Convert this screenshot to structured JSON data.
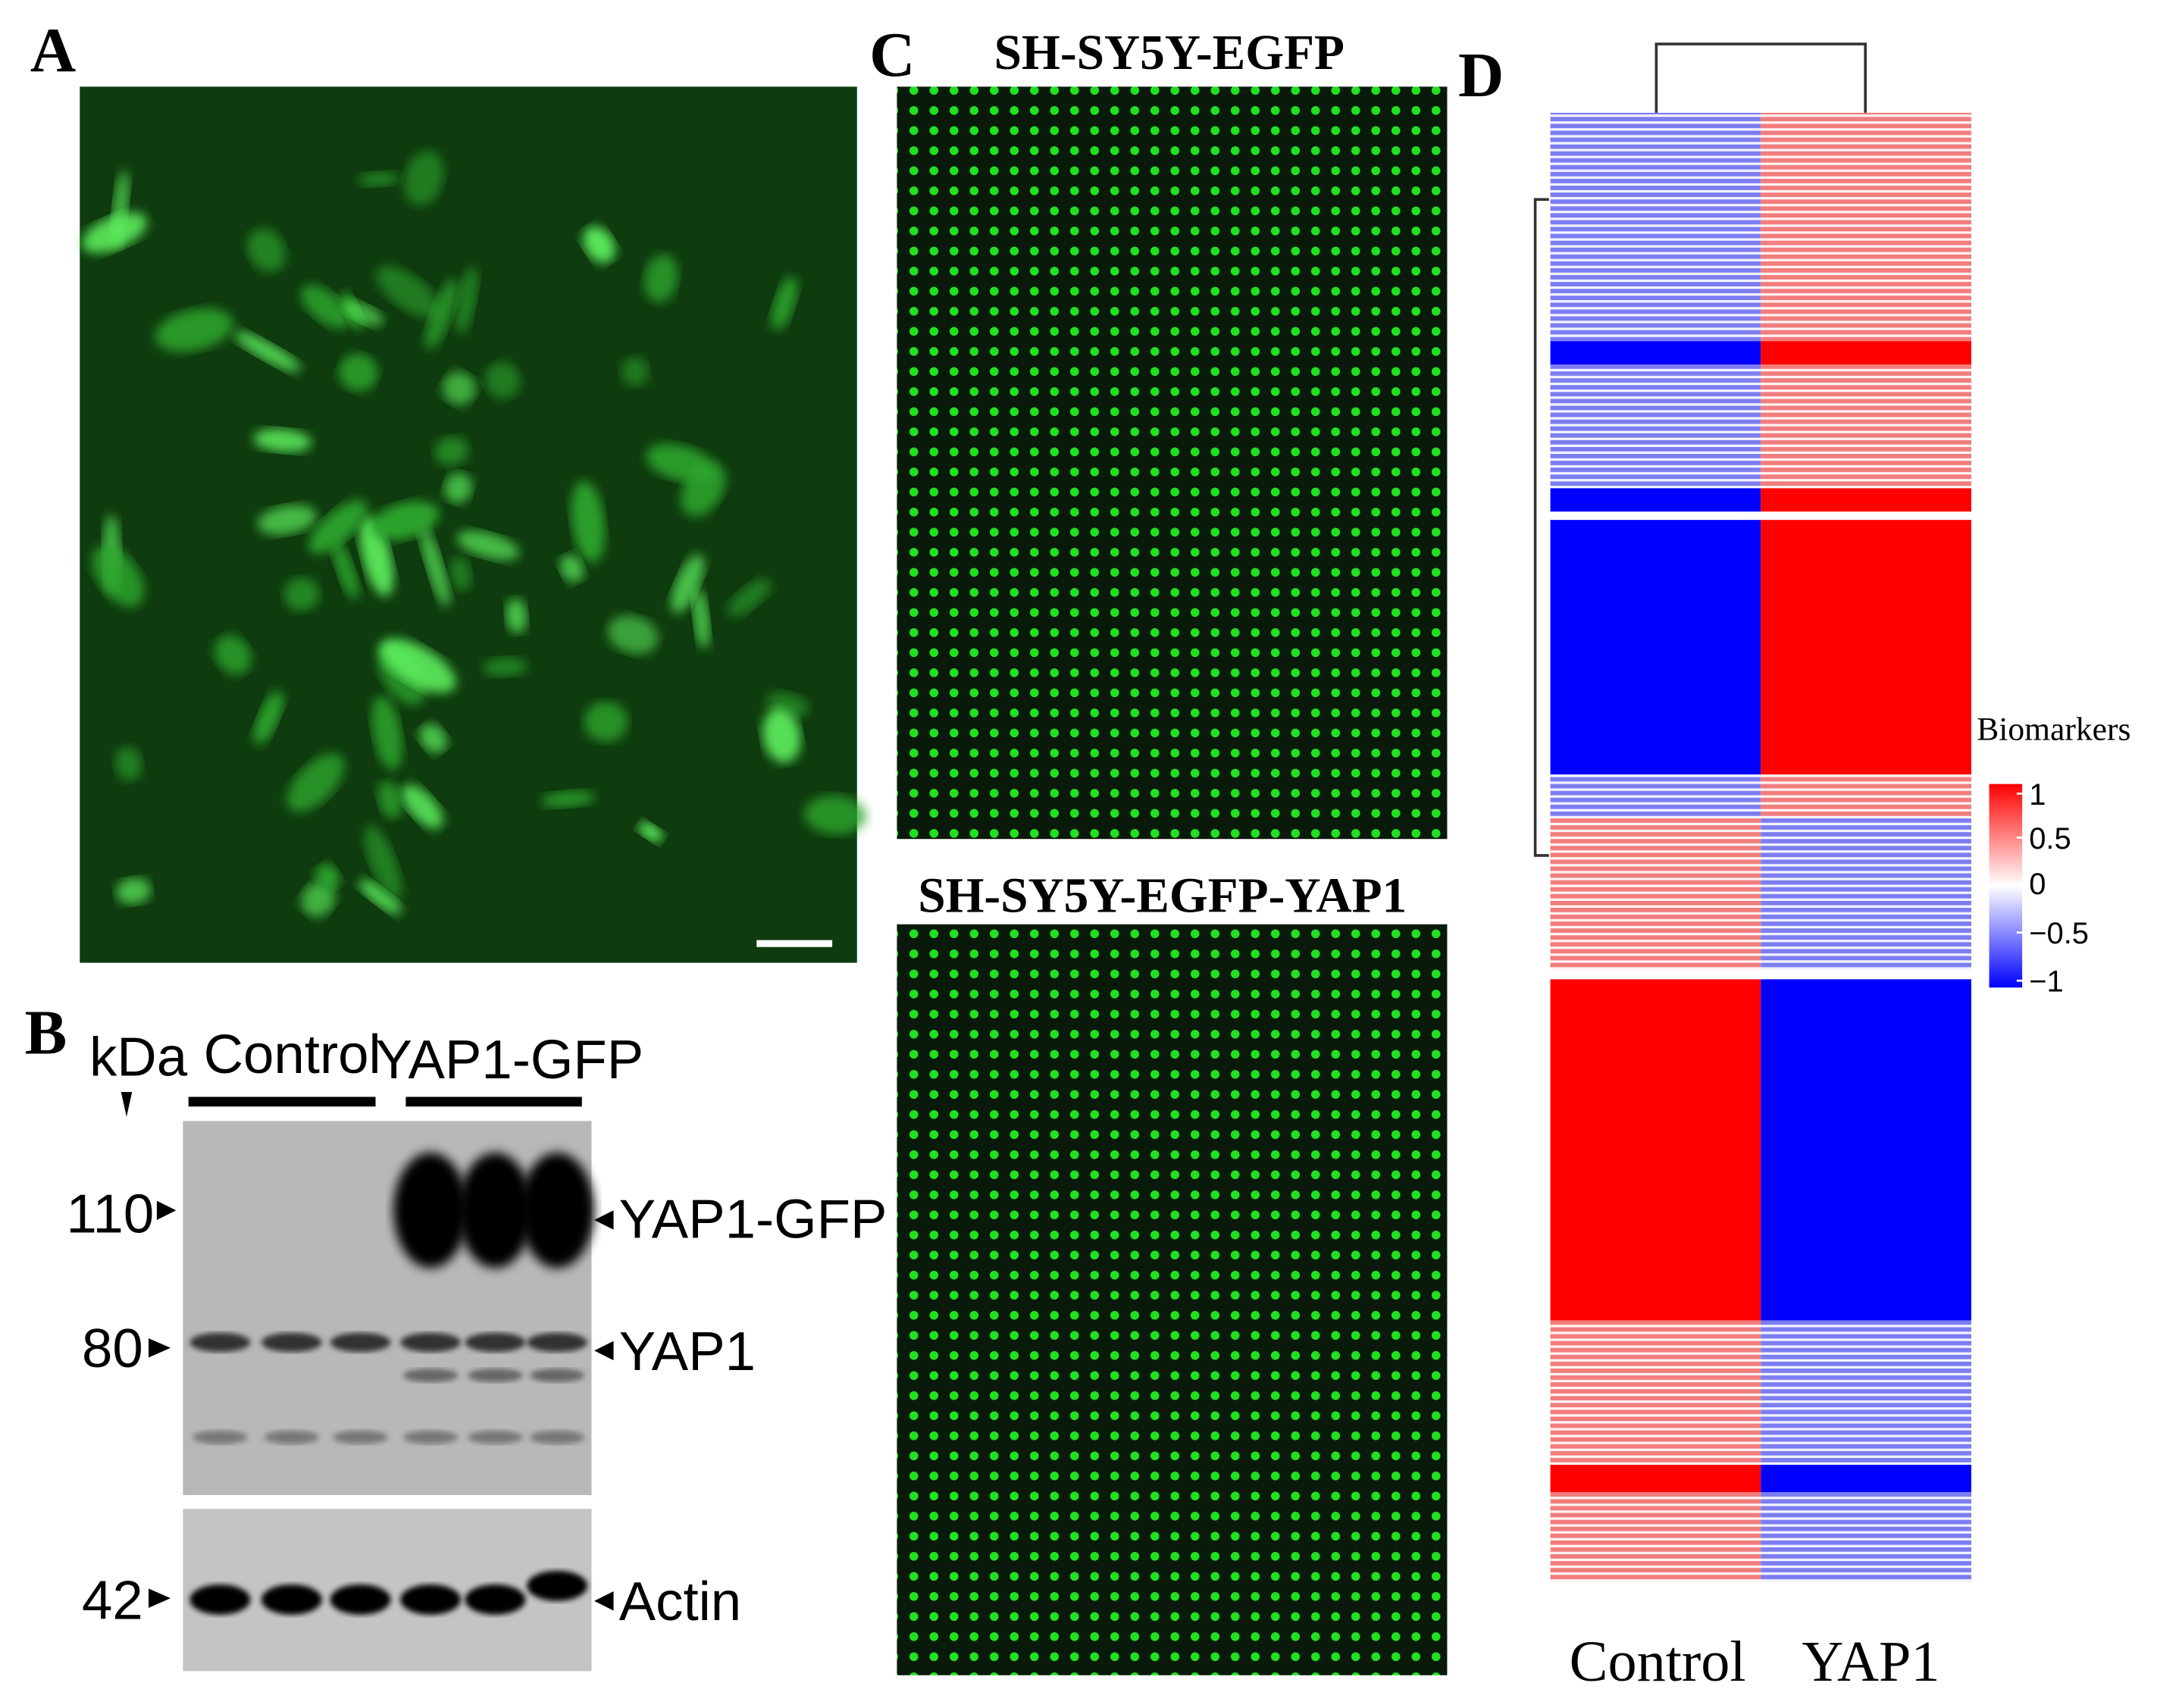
{
  "panels": {
    "a": {
      "label": "A"
    },
    "b": {
      "label": "B",
      "kda": "kDa",
      "groups": [
        "Control",
        "YAP1-GFP"
      ],
      "markers": [
        "110",
        "80",
        "42"
      ],
      "bands": [
        "YAP1-GFP",
        "YAP1",
        "Actin"
      ]
    },
    "c": {
      "label": "C",
      "titles": [
        "SH-SY5Y-EGFP",
        "SH-SY5Y-EGFP-YAP1"
      ]
    },
    "d": {
      "label": "D",
      "legend_title": "Biomarkers",
      "legend_ticks": [
        "1",
        "0.5",
        "0",
        "−0.5",
        "−1"
      ],
      "columns": [
        "Control",
        "YAP1"
      ]
    }
  }
}
